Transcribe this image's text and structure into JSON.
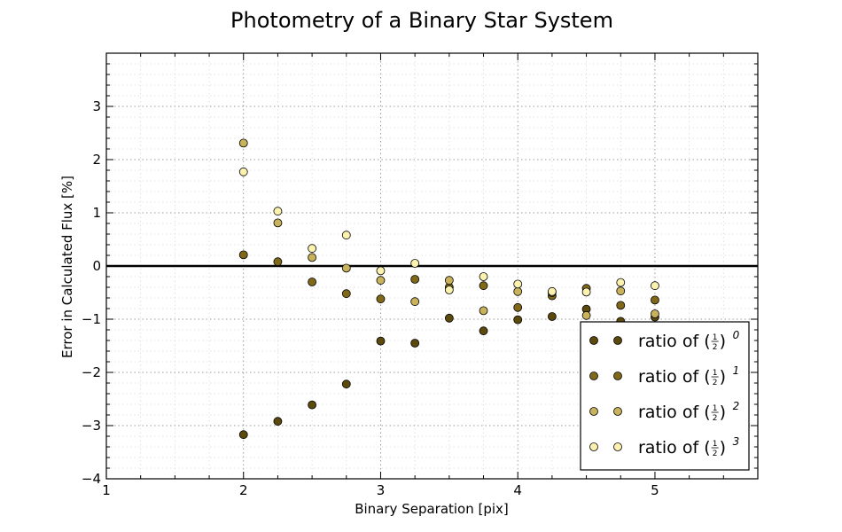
{
  "chart_data": {
    "type": "scatter",
    "title": "Photometry of a Binary Star System",
    "xlabel": "Binary Separation [pix]",
    "ylabel": "Error in Calculated Flux [%]",
    "xlim": [
      1,
      5.75
    ],
    "ylim": [
      -4,
      4
    ],
    "xticks": [
      1,
      2,
      3,
      4,
      5
    ],
    "xtick_labels": [
      "1",
      "2",
      "3",
      "4",
      "5"
    ],
    "yticks": [
      -4,
      -3,
      -2,
      -1,
      0,
      1,
      2,
      3
    ],
    "ytick_labels": [
      "−4",
      "−3",
      "−2",
      "−1",
      "0",
      "1",
      "2",
      "3"
    ],
    "grid": true,
    "zero_line": 0,
    "legend_position": "lower-right",
    "legend_prefix": "ratio of",
    "series": [
      {
        "name": "ratio of (1/2)^0",
        "exponent": "0",
        "color": "#5b4a0b",
        "x": [
          2,
          2.25,
          2.5,
          2.75,
          3,
          3.25,
          3.5,
          3.75,
          4,
          4.25,
          4.5,
          4.75,
          5
        ],
        "y": [
          -3.17,
          -2.92,
          -2.61,
          -2.22,
          -1.41,
          -1.45,
          -0.98,
          -1.22,
          -1.01,
          -0.95,
          -0.81,
          -1.04,
          -0.96
        ]
      },
      {
        "name": "ratio of (1/2)^1",
        "exponent": "1",
        "color": "#806818",
        "x": [
          2,
          2.25,
          2.5,
          2.75,
          3,
          3.25,
          3.5,
          3.75,
          4,
          4.25,
          4.5,
          4.75,
          5
        ],
        "y": [
          0.21,
          0.08,
          -0.3,
          -0.52,
          -0.62,
          -0.25,
          -0.4,
          -0.37,
          -0.78,
          -0.56,
          -0.42,
          -0.74,
          -0.64
        ]
      },
      {
        "name": "ratio of (1/2)^2",
        "exponent": "2",
        "color": "#c8b25c",
        "x": [
          2,
          2.25,
          2.5,
          2.75,
          3,
          3.25,
          3.5,
          3.75,
          4,
          4.25,
          4.5,
          4.75,
          5
        ],
        "y": [
          2.31,
          0.81,
          0.16,
          -0.04,
          -0.27,
          -0.67,
          -0.27,
          -0.84,
          -0.48,
          -0.5,
          -0.93,
          -0.47,
          -0.9
        ]
      },
      {
        "name": "ratio of (1/2)^3",
        "exponent": "3",
        "color": "#fbf2b0",
        "x": [
          2,
          2.25,
          2.5,
          2.75,
          3,
          3.25,
          3.5,
          3.75,
          4,
          4.25,
          4.5,
          4.75,
          5
        ],
        "y": [
          1.77,
          1.03,
          0.33,
          0.58,
          -0.09,
          0.05,
          -0.45,
          -0.2,
          -0.34,
          -0.48,
          -0.49,
          -0.31,
          -0.37
        ]
      }
    ]
  }
}
